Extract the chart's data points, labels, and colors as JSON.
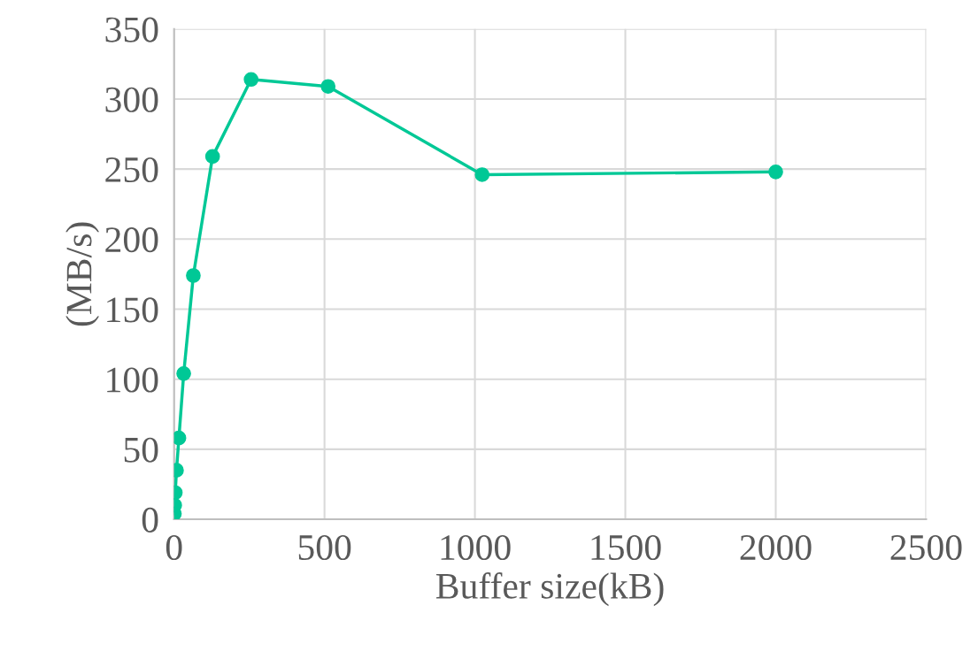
{
  "chart_data": {
    "type": "line",
    "xlabel": "Buffer size(kB)",
    "ylabel": "(MB/s)",
    "x": [
      1,
      2,
      4,
      8,
      16,
      32,
      64,
      128,
      256,
      512,
      1024,
      2000
    ],
    "series": [
      {
        "color": "#00c896",
        "values": [
          4,
          10,
          19,
          35,
          58,
          104,
          174,
          259,
          314,
          309,
          246,
          248
        ]
      }
    ],
    "xlim": [
      0,
      2500
    ],
    "xticks": [
      0,
      500,
      1000,
      1500,
      2000,
      2500
    ],
    "ylim": [
      0,
      350
    ],
    "yticks": [
      0,
      50,
      100,
      150,
      200,
      250,
      300,
      350
    ],
    "grid": true,
    "marker": "circle",
    "line_style": "solid"
  }
}
